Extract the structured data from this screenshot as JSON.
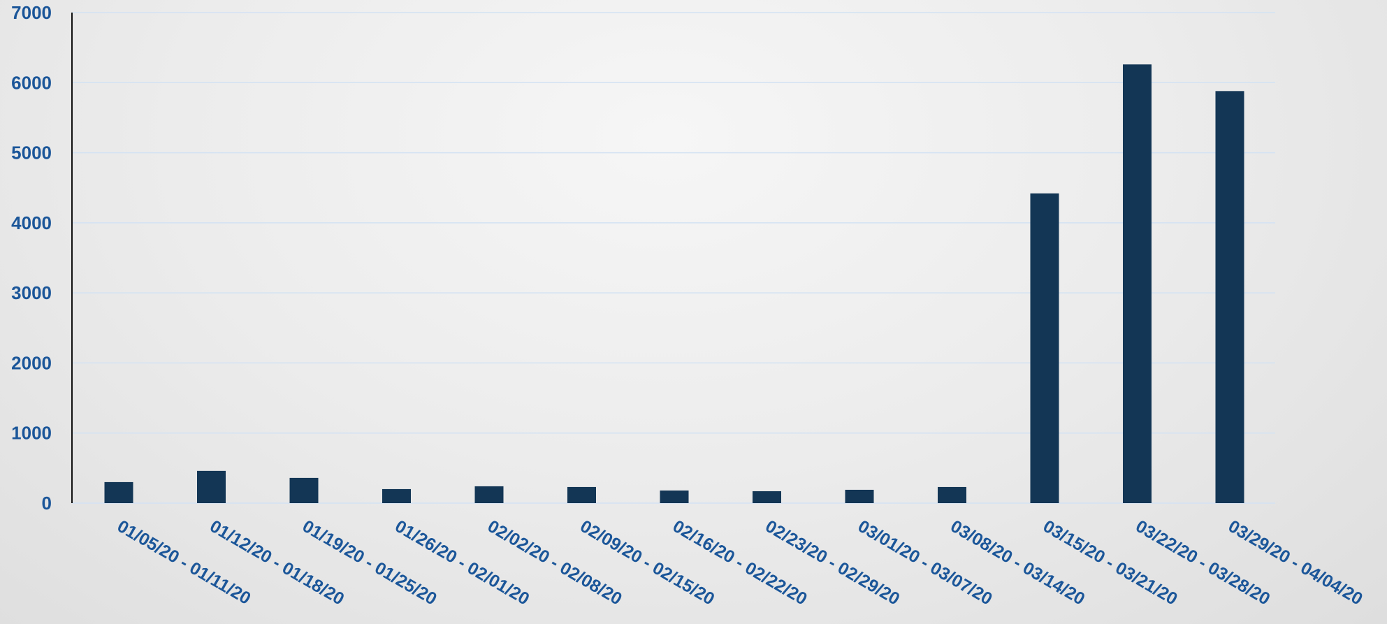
{
  "chart_data": {
    "type": "bar",
    "title": "",
    "xlabel": "",
    "ylabel": "",
    "categories": [
      "01/05/20 - 01/11/20",
      "01/12/20 - 01/18/20",
      "01/19/20 - 01/25/20",
      "01/26/20 - 02/01/20",
      "02/02/20 - 02/08/20",
      "02/09/20 - 02/15/20",
      "02/16/20 - 02/22/20",
      "02/23/20 - 02/29/20",
      "03/01/20 - 03/07/20",
      "03/08/20 - 03/14/20",
      "03/15/20 - 03/21/20",
      "03/22/20 - 03/28/20",
      "03/29/20 - 04/04/20"
    ],
    "values": [
      300,
      460,
      360,
      200,
      240,
      230,
      180,
      170,
      190,
      230,
      4420,
      6260,
      5880
    ],
    "ylim": [
      0,
      7000
    ],
    "yticks": [
      "0",
      "1000",
      "2000",
      "3000",
      "4000",
      "5000",
      "6000",
      "7000"
    ],
    "grid": true,
    "legend": "none",
    "colors": {
      "bar": "#133655",
      "label": "#1b5699",
      "gridline": "#d3e2f3",
      "axis": "#111111"
    }
  }
}
